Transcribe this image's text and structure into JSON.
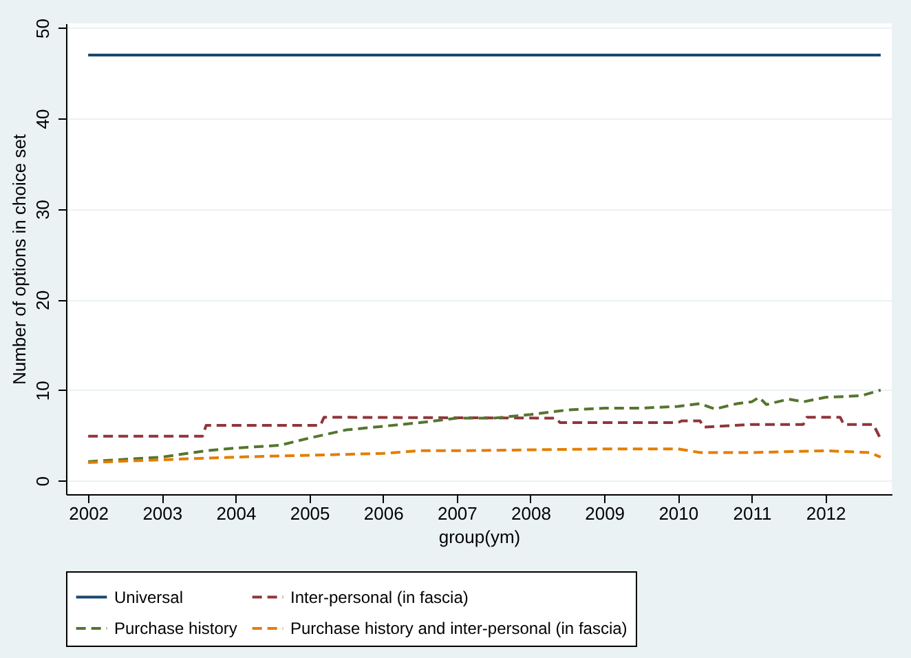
{
  "chart_data": {
    "type": "line",
    "xlabel": "group(ym)",
    "ylabel": "Number of options in choice set",
    "xlim": [
      2001.7,
      2012.9
    ],
    "xticks": [
      2002,
      2003,
      2004,
      2005,
      2006,
      2007,
      2008,
      2009,
      2010,
      2011,
      2012
    ],
    "ylim": [
      -1.5,
      50.5
    ],
    "yticks": [
      0,
      10,
      20,
      30,
      40,
      50
    ],
    "grid": "y",
    "legend": "bottom",
    "series": [
      {
        "name": "Universal",
        "color": "#1a476f",
        "line_style": "solid",
        "x": [
          2002,
          2012.75
        ],
        "values": [
          47,
          47
        ]
      },
      {
        "name": "Inter-personal (in fascia)",
        "color": "#90353b",
        "line_style": "dashed",
        "x": [
          2002,
          2003.55,
          2003.6,
          2005.15,
          2005.2,
          2008.35,
          2008.4,
          2010.0,
          2010.05,
          2010.3,
          2010.35,
          2011.0,
          2011.7,
          2011.75,
          2012.2,
          2012.25,
          2012.65,
          2012.75
        ],
        "values": [
          4.9,
          4.9,
          6.1,
          6.1,
          7.0,
          6.9,
          6.4,
          6.4,
          6.6,
          6.6,
          5.9,
          6.2,
          6.2,
          7.0,
          7.0,
          6.2,
          6.2,
          4.6
        ]
      },
      {
        "name": "Purchase history",
        "color": "#55752f",
        "line_style": "dashed",
        "x": [
          2002,
          2003,
          2003.6,
          2004,
          2004.6,
          2005,
          2005.5,
          2006,
          2006.5,
          2007,
          2007.5,
          2008,
          2008.5,
          2009,
          2009.5,
          2010,
          2010.3,
          2010.5,
          2010.8,
          2011,
          2011.1,
          2011.2,
          2011.5,
          2011.7,
          2012,
          2012.3,
          2012.5,
          2012.75
        ],
        "values": [
          2.1,
          2.6,
          3.3,
          3.6,
          3.9,
          4.7,
          5.6,
          6.0,
          6.4,
          6.9,
          6.9,
          7.3,
          7.8,
          8.0,
          8.0,
          8.2,
          8.5,
          7.9,
          8.5,
          8.7,
          9.2,
          8.4,
          9.0,
          8.7,
          9.2,
          9.3,
          9.4,
          10.0
        ]
      },
      {
        "name": "Purchase history and inter-personal (in fascia)",
        "color": "#e37e00",
        "line_style": "dashed",
        "x": [
          2002,
          2003,
          2004,
          2005,
          2006,
          2006.5,
          2007,
          2008,
          2009,
          2010,
          2010.3,
          2011,
          2012,
          2012.6,
          2012.75
        ],
        "values": [
          2.0,
          2.3,
          2.6,
          2.8,
          3.0,
          3.3,
          3.3,
          3.4,
          3.5,
          3.5,
          3.1,
          3.1,
          3.3,
          3.1,
          2.6
        ]
      }
    ]
  }
}
